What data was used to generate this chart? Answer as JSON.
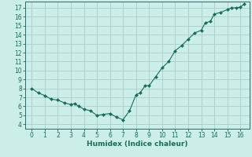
{
  "x": [
    0,
    0.5,
    1,
    1.5,
    2,
    2.5,
    3,
    3.3,
    3.6,
    4,
    4.5,
    5,
    5.5,
    6,
    6.5,
    7,
    7.5,
    8,
    8.3,
    8.7,
    9,
    9.5,
    10,
    10.5,
    11,
    11.5,
    12,
    12.5,
    13,
    13.3,
    13.7,
    14,
    14.5,
    15,
    15.3,
    15.7,
    16,
    16.3
  ],
  "y": [
    8.0,
    7.5,
    7.2,
    6.8,
    6.7,
    6.4,
    6.2,
    6.3,
    6.0,
    5.7,
    5.5,
    5.0,
    5.1,
    5.2,
    4.8,
    4.5,
    5.5,
    7.3,
    7.5,
    8.3,
    8.3,
    9.3,
    10.3,
    11.0,
    12.2,
    12.8,
    13.5,
    14.2,
    14.5,
    15.3,
    15.5,
    16.3,
    16.5,
    16.8,
    17.0,
    17.0,
    17.1,
    17.4
  ],
  "line_color": "#1a6b5a",
  "marker_color": "#1a6b5a",
  "bg_color": "#cceee8",
  "grid_color": "#aacccc",
  "axis_color": "#336666",
  "xlabel": "Humidex (Indice chaleur)",
  "xlim": [
    -0.5,
    16.7
  ],
  "ylim": [
    3.5,
    17.7
  ],
  "xticks": [
    0,
    1,
    2,
    3,
    4,
    5,
    6,
    7,
    8,
    9,
    10,
    11,
    12,
    13,
    14,
    15,
    16
  ],
  "yticks": [
    4,
    5,
    6,
    7,
    8,
    9,
    10,
    11,
    12,
    13,
    14,
    15,
    16,
    17
  ],
  "tick_fontsize": 5.5,
  "xlabel_fontsize": 6.5,
  "tick_color": "#1a6b5a",
  "label_color": "#1a6b5a",
  "marker_size": 2.0,
  "line_width": 0.8
}
